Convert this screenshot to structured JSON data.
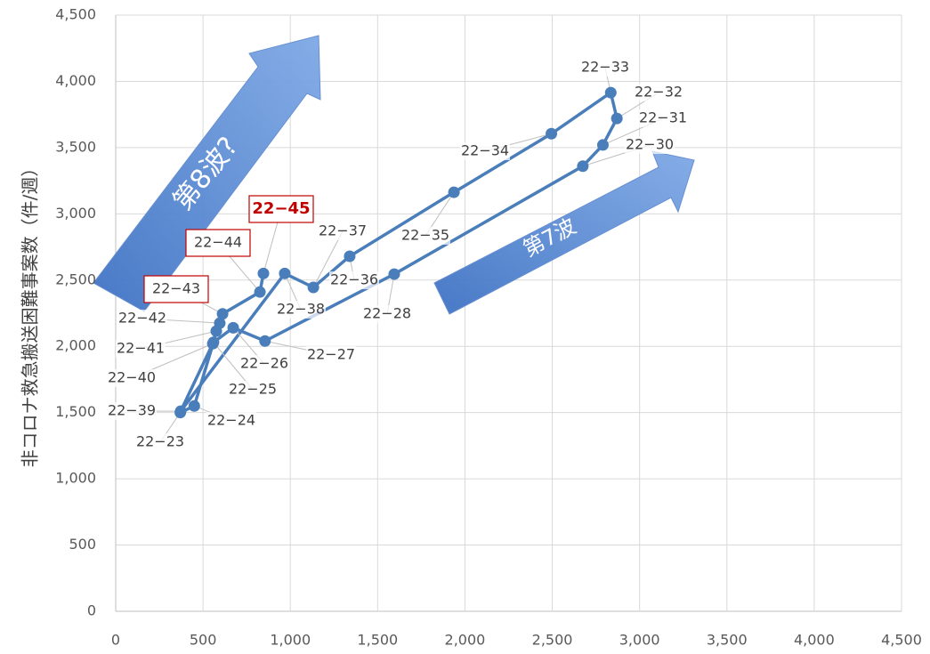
{
  "chart_data": {
    "type": "line",
    "y_label": "非コロナ救急搬送困難事案数（件/週）",
    "x": [
      370,
      450,
      560,
      673,
      855,
      1595,
      2675,
      2790,
      2870,
      2835,
      2495,
      1937,
      1340,
      1132,
      968,
      372,
      556,
      576,
      596,
      612,
      826,
      846
    ],
    "values": [
      1500,
      1550,
      2030,
      2140,
      2040,
      2545,
      3360,
      3520,
      3720,
      3915,
      3605,
      3163,
      2680,
      2445,
      2550,
      1510,
      2020,
      2115,
      2175,
      2245,
      2410,
      2550
    ],
    "point_labels": [
      "22−23",
      "22−24",
      "22−25",
      "22−26",
      "22−27",
      "22−28",
      "22−30",
      "22−31",
      "22−32",
      "22−33",
      "22−34",
      "22−35",
      "22−36",
      "22−37",
      "22−38",
      "22−39",
      "22−40",
      "22−41",
      "22−42",
      "22−43",
      "22−44",
      "22−45"
    ],
    "color": "#4a7ebb",
    "annotations": [
      "第8波?",
      "第7波"
    ],
    "xlim": [
      0,
      4500
    ],
    "ylim": [
      0,
      4500
    ],
    "xticks": [
      0,
      500,
      {
        "value": 1000,
        "label": "1,000"
      },
      {
        "value": 1500,
        "label": "1,500"
      },
      {
        "value": 2000,
        "label": "2,000"
      },
      {
        "value": 2500,
        "label": "2,500"
      },
      {
        "value": 3000,
        "label": "3,000"
      },
      {
        "value": 3500,
        "label": "3,500"
      },
      {
        "value": 4000,
        "label": "4,000"
      },
      {
        "value": 4500,
        "label": "4,500"
      }
    ],
    "yticks": [
      0,
      500,
      {
        "value": 1000,
        "label": "1,000"
      },
      {
        "value": 1500,
        "label": "1,500"
      },
      {
        "value": 2000,
        "label": "2,000"
      },
      {
        "value": 2500,
        "label": "2,500"
      },
      {
        "value": 3000,
        "label": "3,000"
      },
      {
        "value": 3500,
        "label": "3,500"
      },
      {
        "value": 4000,
        "label": "4,000"
      },
      {
        "value": 4500,
        "label": "4,500"
      }
    ],
    "grid": true
  }
}
